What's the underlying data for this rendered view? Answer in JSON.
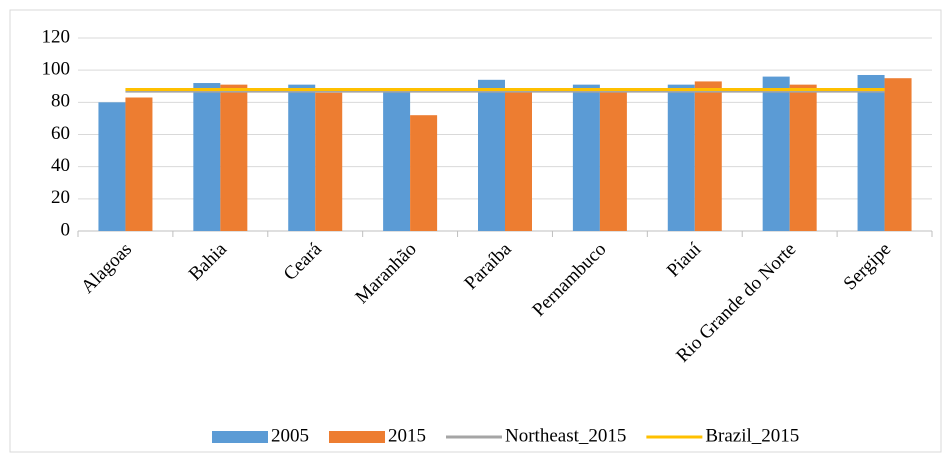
{
  "chart_data": {
    "type": "bar",
    "categories": [
      "Alagoas",
      "Bahia",
      "Ceará",
      "Maranhão",
      "Paraíba",
      "Pernambuco",
      "Piauí",
      "Rio Grande do Norte",
      "Sergipe"
    ],
    "series": [
      {
        "name": "2005",
        "color": "#5b9bd5",
        "kind": "bar",
        "values": [
          80,
          92,
          91,
          88,
          94,
          91,
          91,
          96,
          97
        ]
      },
      {
        "name": "2015",
        "color": "#ed7d31",
        "kind": "bar",
        "values": [
          83,
          91,
          86,
          72,
          88,
          88,
          93,
          91,
          95
        ]
      },
      {
        "name": "Northeast_2015",
        "color": "#a5a5a5",
        "kind": "line",
        "values": [
          87,
          87,
          87,
          87,
          87,
          87,
          87,
          87,
          87
        ]
      },
      {
        "name": "Brazil_2015",
        "color": "#ffc000",
        "kind": "line",
        "values": [
          88,
          88,
          88,
          88,
          88,
          88,
          88,
          88,
          88
        ]
      }
    ],
    "ylim": [
      0,
      120
    ],
    "yticks": [
      0,
      20,
      40,
      60,
      80,
      100,
      120
    ],
    "grid": true,
    "legend": "bottom"
  }
}
